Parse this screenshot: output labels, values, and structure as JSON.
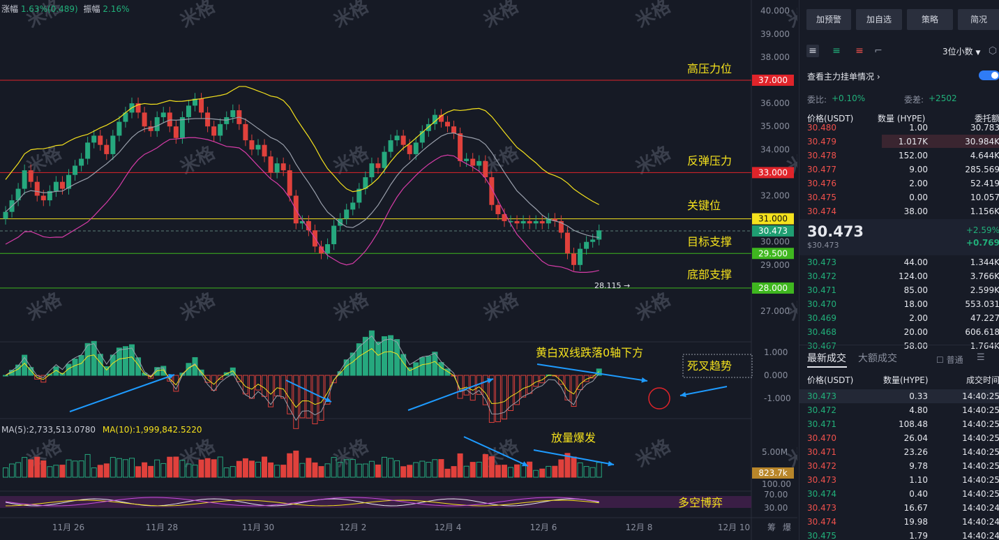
{
  "header_stats": {
    "change_label": "涨幅",
    "change_value": "1.63%(0.489)",
    "amp_label": "振幅",
    "amp_value": "2.16%"
  },
  "price_axis": [
    "40.000",
    "39.000",
    "38.000",
    "37.000",
    "36.000",
    "35.000",
    "34.000",
    "33.000",
    "32.000",
    "31.000",
    "30.473",
    "30.000",
    "29.500",
    "29.000",
    "28.000",
    "27.000"
  ],
  "level_tags": [
    {
      "label": "37.000",
      "color": "#e0242a"
    },
    {
      "label": "33.000",
      "color": "#e0242a"
    },
    {
      "label": "31.000",
      "color": "#f5e21d"
    },
    {
      "label": "30.473",
      "color": "#1f9e72"
    },
    {
      "label": "29.500",
      "color": "#3fb71f"
    },
    {
      "label": "28.000",
      "color": "#3fb71f"
    }
  ],
  "annotations": {
    "high_resistance": "高压力位",
    "rebound_resistance": "反弹压力",
    "key_level": "关键位",
    "target_support": "目标支撑",
    "bottom_support": "底部支撑",
    "low_marker": "28.115 →",
    "macd_note": "黄白双线跌落0轴下方",
    "death_cross": "死叉趋势",
    "volume_note": "放量爆发",
    "kdj_note": "多空博弈"
  },
  "macd_axis": [
    "1.000",
    "0.000",
    "-1.000"
  ],
  "volume_legend": {
    "ma5": "MA(5):2,733,513.0780",
    "ma10": "MA(10):1,999,842.5220"
  },
  "volume_axis": {
    "top": "5.00M",
    "tag": "823.7k"
  },
  "osc_axis": [
    "100.00",
    "70.00",
    "30.00"
  ],
  "date_axis": [
    "11月 26",
    "11月 28",
    "11月 30",
    "12月 2",
    "12月 4",
    "12月 6",
    "12月 8",
    "12月 10"
  ],
  "corner_labels": [
    "筹",
    "爆"
  ],
  "watermark": "米格",
  "panel": {
    "top_buttons": [
      "加预警",
      "加自选",
      "策略",
      "简况"
    ],
    "decimals": "3位小数",
    "main_orders": "查看主力挂单情况",
    "ratio_label": "委比:",
    "ratio_value": "+0.10%",
    "diff_label": "委差:",
    "diff_value": "+2502",
    "book_headers": [
      "价格(USDT)",
      "数量 (HYPE)",
      "委托额"
    ],
    "asks": [
      {
        "p": "30.480",
        "q": "1.00",
        "t": "30.783"
      },
      {
        "p": "30.479",
        "q": "1.017K",
        "t": "30.984K"
      },
      {
        "p": "30.478",
        "q": "152.00",
        "t": "4.644K"
      },
      {
        "p": "30.477",
        "q": "9.00",
        "t": "285.569"
      },
      {
        "p": "30.476",
        "q": "2.00",
        "t": "52.419"
      },
      {
        "p": "30.475",
        "q": "0.00",
        "t": "10.057"
      },
      {
        "p": "30.474",
        "q": "38.00",
        "t": "1.156K"
      }
    ],
    "last_price": "30.473",
    "last_usd": "$30.473",
    "change_pct": "+2.59%",
    "change_abs": "+0.769",
    "bids": [
      {
        "p": "30.473",
        "q": "44.00",
        "t": "1.344K"
      },
      {
        "p": "30.472",
        "q": "124.00",
        "t": "3.766K"
      },
      {
        "p": "30.471",
        "q": "85.00",
        "t": "2.599K"
      },
      {
        "p": "30.470",
        "q": "18.00",
        "t": "553.031"
      },
      {
        "p": "30.469",
        "q": "2.00",
        "t": "47.227"
      },
      {
        "p": "30.468",
        "q": "20.00",
        "t": "606.618"
      },
      {
        "p": "30.467",
        "q": "58.00",
        "t": "1.764K"
      }
    ],
    "trade_tabs": [
      "最新成交",
      "大额成交"
    ],
    "normal_label": "普通",
    "trade_headers": [
      "价格(USDT)",
      "数量(HYPE)",
      "成交时间"
    ],
    "trades": [
      {
        "p": "30.473",
        "q": "0.33",
        "t": "14:40:25",
        "c": "green"
      },
      {
        "p": "30.472",
        "q": "4.80",
        "t": "14:40:25",
        "c": "green"
      },
      {
        "p": "30.471",
        "q": "108.48",
        "t": "14:40:25",
        "c": "green"
      },
      {
        "p": "30.470",
        "q": "26.04",
        "t": "14:40:25",
        "c": "red"
      },
      {
        "p": "30.471",
        "q": "23.26",
        "t": "14:40:25",
        "c": "red"
      },
      {
        "p": "30.472",
        "q": "9.78",
        "t": "14:40:25",
        "c": "red"
      },
      {
        "p": "30.473",
        "q": "1.10",
        "t": "14:40:25",
        "c": "red"
      },
      {
        "p": "30.474",
        "q": "0.40",
        "t": "14:40:25",
        "c": "green"
      },
      {
        "p": "30.473",
        "q": "16.67",
        "t": "14:40:24",
        "c": "red"
      },
      {
        "p": "30.474",
        "q": "19.98",
        "t": "14:40:24",
        "c": "red"
      },
      {
        "p": "30.475",
        "q": "1.79",
        "t": "14:40:24",
        "c": "green"
      }
    ]
  },
  "colors": {
    "up": "#26a87e",
    "down": "#e0413c",
    "yellow": "#f5e21d",
    "green_line": "#3fb71f",
    "red_line": "#e0242a",
    "boll_mid": "#9aa0ac",
    "boll_low": "#d63ca8",
    "arrow": "#1e9bff"
  }
}
